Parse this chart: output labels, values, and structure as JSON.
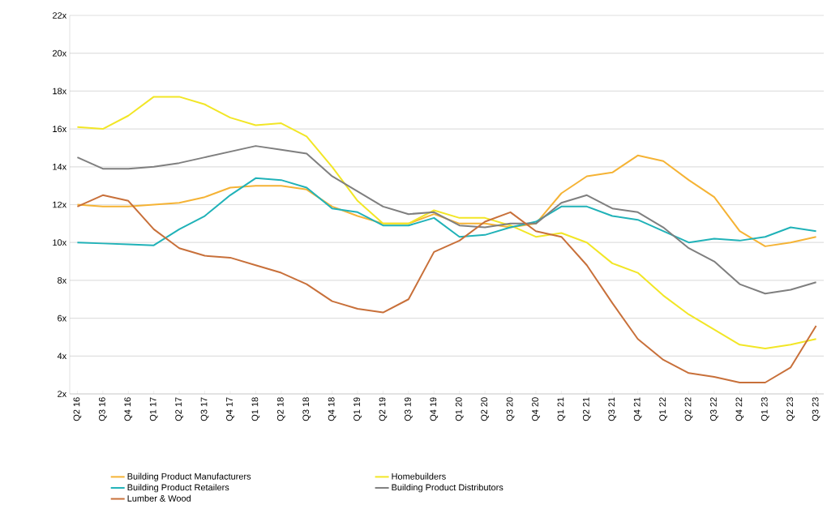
{
  "chart_data": {
    "type": "line",
    "categories": [
      "Q2 16",
      "Q3 16",
      "Q4 16",
      "Q1 17",
      "Q2 17",
      "Q3 17",
      "Q4 17",
      "Q1 18",
      "Q2 18",
      "Q3 18",
      "Q4 18",
      "Q1 19",
      "Q2 19",
      "Q3 19",
      "Q4 19",
      "Q1 20",
      "Q2 20",
      "Q3 20",
      "Q4 20",
      "Q1 21",
      "Q2 21",
      "Q3 21",
      "Q4 21",
      "Q1 22",
      "Q2 22",
      "Q3 22",
      "Q4 22",
      "Q1 23",
      "Q2 23",
      "Q3 23"
    ],
    "series": [
      {
        "name": "Building Product Manufacturers",
        "color": "#f5b335",
        "values": [
          12.0,
          11.9,
          11.9,
          12.0,
          12.1,
          12.4,
          12.9,
          13.0,
          13.0,
          12.8,
          11.9,
          11.4,
          11.0,
          11.0,
          11.5,
          11.0,
          11.0,
          10.8,
          11.0,
          12.6,
          13.5,
          13.7,
          14.6,
          14.3,
          13.3,
          12.4,
          10.6,
          9.8,
          10.0,
          10.3
        ]
      },
      {
        "name": "Homebuilders",
        "color": "#f2e626",
        "values": [
          16.1,
          16.0,
          16.7,
          17.7,
          17.7,
          17.3,
          16.6,
          16.2,
          16.3,
          15.6,
          14.0,
          12.2,
          11.0,
          11.0,
          11.7,
          11.3,
          11.3,
          10.9,
          10.3,
          10.5,
          10.0,
          8.9,
          8.4,
          7.2,
          6.2,
          5.4,
          4.6,
          4.4,
          4.6,
          4.9
        ]
      },
      {
        "name": "Building Product Retailers",
        "color": "#20b2b8",
        "values": [
          10.0,
          9.95,
          9.9,
          9.85,
          10.7,
          11.4,
          12.5,
          13.4,
          13.3,
          12.9,
          11.8,
          11.6,
          10.9,
          10.9,
          11.3,
          10.3,
          10.4,
          10.8,
          11.1,
          11.9,
          11.9,
          11.4,
          11.2,
          10.6,
          10.0,
          10.2,
          10.1,
          10.3,
          10.8,
          10.6
        ]
      },
      {
        "name": "Building Product Distributors",
        "color": "#7f7f7f",
        "values": [
          14.5,
          13.9,
          13.9,
          14.0,
          14.2,
          14.5,
          14.8,
          15.1,
          14.9,
          14.7,
          13.5,
          12.7,
          11.9,
          11.5,
          11.6,
          10.9,
          10.8,
          11.0,
          11.0,
          12.1,
          12.5,
          11.8,
          11.6,
          10.8,
          9.7,
          9.0,
          7.8,
          7.3,
          7.5,
          7.9
        ]
      },
      {
        "name": "Lumber & Wood",
        "color": "#c8703a",
        "values": [
          11.9,
          12.5,
          12.2,
          10.7,
          9.7,
          9.3,
          9.2,
          8.8,
          8.4,
          7.8,
          6.9,
          6.5,
          6.3,
          7.0,
          9.5,
          10.1,
          11.1,
          11.6,
          10.6,
          10.3,
          8.8,
          6.8,
          4.9,
          3.8,
          3.1,
          2.9,
          2.6,
          2.6,
          3.4,
          5.6
        ]
      }
    ],
    "ylim": [
      2,
      22
    ],
    "yticks": [
      {
        "value": 2,
        "label": "2x"
      },
      {
        "value": 4,
        "label": "4x"
      },
      {
        "value": 6,
        "label": "6x"
      },
      {
        "value": 8,
        "label": "8x"
      },
      {
        "value": 10,
        "label": "10x"
      },
      {
        "value": 12,
        "label": "12x"
      },
      {
        "value": 14,
        "label": "14x"
      },
      {
        "value": 16,
        "label": "16x"
      },
      {
        "value": 18,
        "label": "18x"
      },
      {
        "value": 20,
        "label": "20x"
      },
      {
        "value": 22,
        "label": "22x"
      }
    ],
    "grid": "y",
    "legend": "bottom"
  }
}
